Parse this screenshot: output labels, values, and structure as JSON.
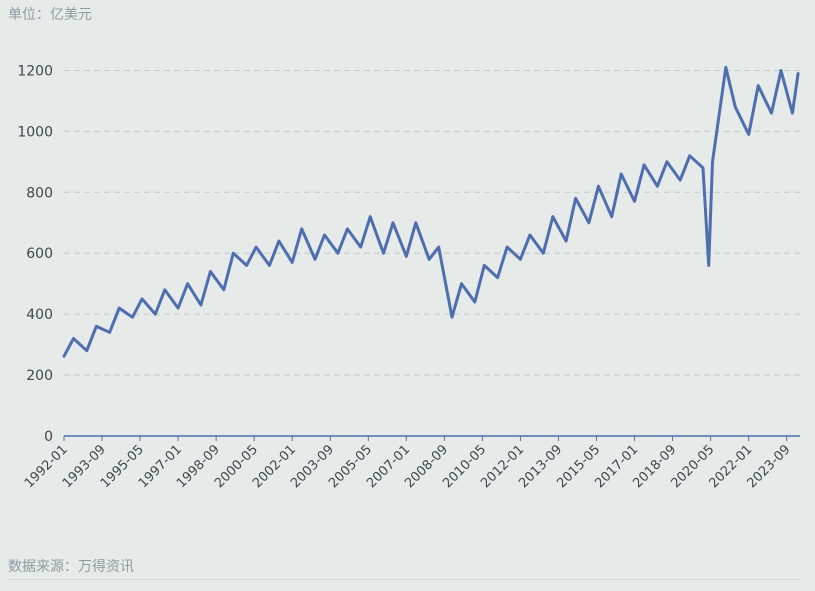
{
  "unit_label": "单位：亿美元",
  "source_label": "数据来源：万得资讯",
  "chart_data": {
    "type": "line",
    "title": "",
    "xlabel": "",
    "ylabel": "",
    "ylim": [
      0,
      1300
    ],
    "yticks": [
      0,
      200,
      400,
      600,
      800,
      1000,
      1200
    ],
    "xticks": [
      "1992-01",
      "1993-09",
      "1995-05",
      "1997-01",
      "1998-09",
      "2000-05",
      "2002-01",
      "2003-09",
      "2005-05",
      "2007-01",
      "2008-09",
      "2010-05",
      "2012-01",
      "2013-09",
      "2015-05",
      "2017-01",
      "2018-09",
      "2020-05",
      "2022-01",
      "2023-09"
    ],
    "grid": "horizontal dashed",
    "color": "#4e6eae",
    "series": [
      {
        "name": "",
        "x": [
          "1992-01",
          "1992-06",
          "1993-01",
          "1993-06",
          "1994-01",
          "1994-06",
          "1995-01",
          "1995-06",
          "1996-01",
          "1996-06",
          "1997-01",
          "1997-06",
          "1998-01",
          "1998-06",
          "1999-01",
          "1999-06",
          "2000-01",
          "2000-06",
          "2001-01",
          "2001-06",
          "2002-01",
          "2002-06",
          "2003-01",
          "2003-06",
          "2004-01",
          "2004-06",
          "2005-01",
          "2005-06",
          "2006-01",
          "2006-06",
          "2007-01",
          "2007-06",
          "2008-01",
          "2008-06",
          "2009-01",
          "2009-06",
          "2010-01",
          "2010-06",
          "2011-01",
          "2011-06",
          "2012-01",
          "2012-06",
          "2013-01",
          "2013-06",
          "2014-01",
          "2014-06",
          "2015-01",
          "2015-06",
          "2016-01",
          "2016-06",
          "2017-01",
          "2017-06",
          "2018-01",
          "2018-06",
          "2019-01",
          "2019-06",
          "2020-01",
          "2020-04",
          "2020-06",
          "2021-01",
          "2021-06",
          "2022-01",
          "2022-06",
          "2023-01",
          "2023-06",
          "2023-12",
          "2024-03"
        ],
        "values": [
          262,
          320,
          280,
          360,
          340,
          420,
          390,
          450,
          400,
          480,
          420,
          500,
          430,
          540,
          480,
          600,
          560,
          620,
          560,
          640,
          570,
          680,
          580,
          660,
          600,
          680,
          620,
          720,
          600,
          700,
          590,
          700,
          580,
          620,
          390,
          500,
          440,
          560,
          520,
          620,
          580,
          660,
          600,
          720,
          640,
          780,
          700,
          820,
          720,
          860,
          770,
          890,
          820,
          900,
          840,
          920,
          880,
          560,
          900,
          1210,
          1080,
          990,
          1150,
          1060,
          1200,
          1060,
          1190
        ]
      }
    ]
  }
}
